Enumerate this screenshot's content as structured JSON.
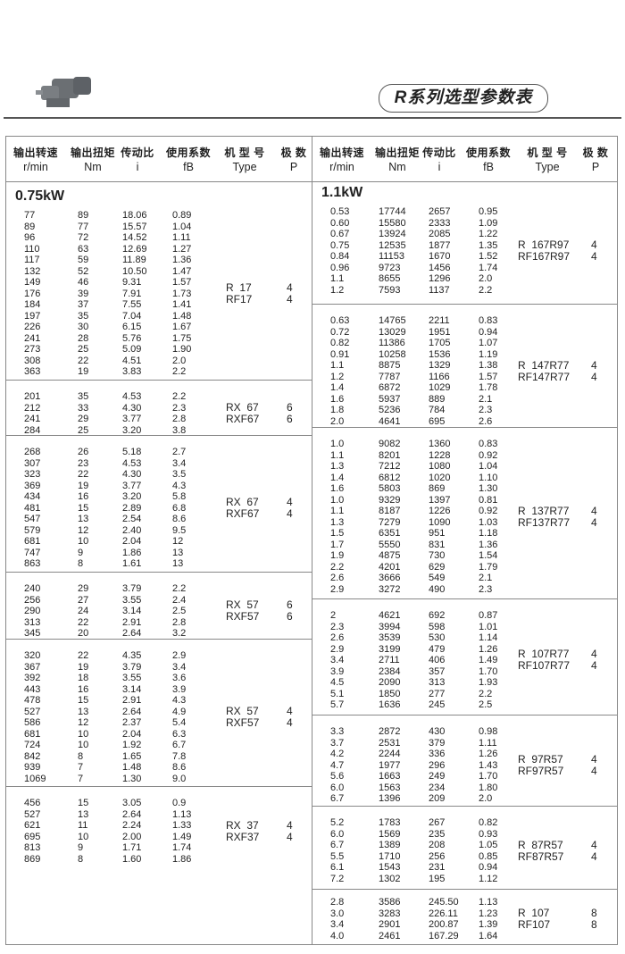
{
  "page": {
    "title": "R系列选型参数表",
    "product_image": "gear-motor-photo"
  },
  "columns": [
    {
      "zh": "输出转速",
      "en": "r/min"
    },
    {
      "zh": "输出扭矩",
      "en": "Nm"
    },
    {
      "zh": "传动比",
      "en": "i"
    },
    {
      "zh": "使用系数",
      "en": "fB"
    },
    {
      "zh": "机 型 号",
      "en": "Type"
    },
    {
      "zh": "极 数",
      "en": "P"
    }
  ],
  "left": {
    "power": "0.75kW",
    "sections": [
      {
        "type": [
          "R  17",
          "RF17"
        ],
        "poles": [
          "4",
          "4"
        ],
        "rows": [
          [
            "77",
            "89",
            "18.06",
            "0.89"
          ],
          [
            "89",
            "77",
            "15.57",
            "1.04"
          ],
          [
            "96",
            "72",
            "14.52",
            "1.11"
          ],
          [
            "110",
            "63",
            "12.69",
            "1.27"
          ],
          [
            "117",
            "59",
            "11.89",
            "1.36"
          ],
          [
            "132",
            "52",
            "10.50",
            "1.47"
          ],
          [
            "149",
            "46",
            "9.31",
            "1.57"
          ],
          [
            "176",
            "39",
            "7.91",
            "1.73"
          ],
          [
            "184",
            "37",
            "7.55",
            "1.41"
          ],
          [
            "197",
            "35",
            "7.04",
            "1.48"
          ],
          [
            "226",
            "30",
            "6.15",
            "1.67"
          ],
          [
            "241",
            "28",
            "5.76",
            "1.75"
          ],
          [
            "273",
            "25",
            "5.09",
            "1.90"
          ],
          [
            "308",
            "22",
            "4.51",
            "2.0"
          ],
          [
            "363",
            "19",
            "3.83",
            "2.2"
          ]
        ]
      },
      {
        "type": [
          "RX  67",
          "RXF67"
        ],
        "poles": [
          "6",
          "6"
        ],
        "rows": [
          [
            "201",
            "35",
            "4.53",
            "2.2"
          ],
          [
            "212",
            "33",
            "4.30",
            "2.3"
          ],
          [
            "241",
            "29",
            "3.77",
            "2.8"
          ],
          [
            "284",
            "25",
            "3.20",
            "3.8"
          ]
        ]
      },
      {
        "type": [
          "RX  67",
          "RXF67"
        ],
        "poles": [
          "4",
          "4"
        ],
        "rows": [
          [
            "268",
            "26",
            "5.18",
            "2.7"
          ],
          [
            "307",
            "23",
            "4.53",
            "3.4"
          ],
          [
            "323",
            "22",
            "4.30",
            "3.5"
          ],
          [
            "369",
            "19",
            "3.77",
            "4.3"
          ],
          [
            "434",
            "16",
            "3.20",
            "5.8"
          ],
          [
            "481",
            "15",
            "2.89",
            "6.8"
          ],
          [
            "547",
            "13",
            "2.54",
            "8.6"
          ],
          [
            "579",
            "12",
            "2.40",
            "9.5"
          ],
          [
            "681",
            "10",
            "2.04",
            "12"
          ],
          [
            "747",
            "9",
            "1.86",
            "13"
          ],
          [
            "863",
            "8",
            "1.61",
            "13"
          ]
        ]
      },
      {
        "type": [
          "RX  57",
          "RXF57"
        ],
        "poles": [
          "6",
          "6"
        ],
        "rows": [
          [
            "240",
            "29",
            "3.79",
            "2.2"
          ],
          [
            "256",
            "27",
            "3.55",
            "2.4"
          ],
          [
            "290",
            "24",
            "3.14",
            "2.5"
          ],
          [
            "313",
            "22",
            "2.91",
            "2.8"
          ],
          [
            "345",
            "20",
            "2.64",
            "3.2"
          ]
        ]
      },
      {
        "type": [
          "RX  57",
          "RXF57"
        ],
        "poles": [
          "4",
          "4"
        ],
        "rows": [
          [
            "320",
            "22",
            "4.35",
            "2.9"
          ],
          [
            "367",
            "19",
            "3.79",
            "3.4"
          ],
          [
            "392",
            "18",
            "3.55",
            "3.6"
          ],
          [
            "443",
            "16",
            "3.14",
            "3.9"
          ],
          [
            "478",
            "15",
            "2.91",
            "4.3"
          ],
          [
            "527",
            "13",
            "2.64",
            "4.9"
          ],
          [
            "586",
            "12",
            "2.37",
            "5.4"
          ],
          [
            "681",
            "10",
            "2.04",
            "6.3"
          ],
          [
            "724",
            "10",
            "1.92",
            "6.7"
          ],
          [
            "842",
            "8",
            "1.65",
            "7.8"
          ],
          [
            "939",
            "7",
            "1.48",
            "8.6"
          ],
          [
            "1069",
            "7",
            "1.30",
            "9.0"
          ]
        ]
      },
      {
        "type": [
          "RX  37",
          "RXF37"
        ],
        "poles": [
          "4",
          "4"
        ],
        "rows": [
          [
            "456",
            "15",
            "3.05",
            "0.9"
          ],
          [
            "527",
            "13",
            "2.64",
            "1.13"
          ],
          [
            "621",
            "11",
            "2.24",
            "1.33"
          ],
          [
            "695",
            "10",
            "2.00",
            "1.49"
          ],
          [
            "813",
            "9",
            "1.71",
            "1.74"
          ],
          [
            "869",
            "8",
            "1.60",
            "1.86"
          ]
        ]
      }
    ]
  },
  "right": {
    "power": "1.1kW",
    "sections": [
      {
        "type": [
          "R  167R97",
          "RF167R97"
        ],
        "poles": [
          "4",
          "4"
        ],
        "rows": [
          [
            "0.53",
            "17744",
            "2657",
            "0.95"
          ],
          [
            "0.60",
            "15580",
            "2333",
            "1.09"
          ],
          [
            "0.67",
            "13924",
            "2085",
            "1.22"
          ],
          [
            "0.75",
            "12535",
            "1877",
            "1.35"
          ],
          [
            "0.84",
            "11153",
            "1670",
            "1.52"
          ],
          [
            "0.96",
            "9723",
            "1456",
            "1.74"
          ],
          [
            "1.1",
            "8655",
            "1296",
            "2.0"
          ],
          [
            "1.2",
            "7593",
            "1137",
            "2.2"
          ]
        ]
      },
      {
        "type": [
          "R  147R77",
          "RF147R77"
        ],
        "poles": [
          "4",
          "4"
        ],
        "rows": [
          [
            "0.63",
            "14765",
            "2211",
            "0.83"
          ],
          [
            "0.72",
            "13029",
            "1951",
            "0.94"
          ],
          [
            "0.82",
            "11386",
            "1705",
            "1.07"
          ],
          [
            "0.91",
            "10258",
            "1536",
            "1.19"
          ],
          [
            "1.1",
            "8875",
            "1329",
            "1.38"
          ],
          [
            "1.2",
            "7787",
            "1166",
            "1.57"
          ],
          [
            "1.4",
            "6872",
            "1029",
            "1.78"
          ],
          [
            "1.6",
            "5937",
            "889",
            "2.1"
          ],
          [
            "1.8",
            "5236",
            "784",
            "2.3"
          ],
          [
            "2.0",
            "4641",
            "695",
            "2.6"
          ]
        ]
      },
      {
        "type": [
          "R  137R77",
          "RF137R77"
        ],
        "poles": [
          "4",
          "4"
        ],
        "rows": [
          [
            "1.0",
            "9082",
            "1360",
            "0.83"
          ],
          [
            "1.1",
            "8201",
            "1228",
            "0.92"
          ],
          [
            "1.3",
            "7212",
            "1080",
            "1.04"
          ],
          [
            "1.4",
            "6812",
            "1020",
            "1.10"
          ],
          [
            "1.6",
            "5803",
            "869",
            "1.30"
          ],
          [
            "1.0",
            "9329",
            "1397",
            "0.81"
          ],
          [
            "1.1",
            "8187",
            "1226",
            "0.92"
          ],
          [
            "1.3",
            "7279",
            "1090",
            "1.03"
          ],
          [
            "1.5",
            "6351",
            "951",
            "1.18"
          ],
          [
            "1.7",
            "5550",
            "831",
            "1.36"
          ],
          [
            "1.9",
            "4875",
            "730",
            "1.54"
          ],
          [
            "2.2",
            "4201",
            "629",
            "1.79"
          ],
          [
            "2.6",
            "3666",
            "549",
            "2.1"
          ],
          [
            "2.9",
            "3272",
            "490",
            "2.3"
          ]
        ]
      },
      {
        "type": [
          "R  107R77",
          "RF107R77"
        ],
        "poles": [
          "4",
          "4"
        ],
        "rows": [
          [
            "2",
            "4621",
            "692",
            "0.87"
          ],
          [
            "2.3",
            "3994",
            "598",
            "1.01"
          ],
          [
            "2.6",
            "3539",
            "530",
            "1.14"
          ],
          [
            "2.9",
            "3199",
            "479",
            "1.26"
          ],
          [
            "3.4",
            "2711",
            "406",
            "1.49"
          ],
          [
            "3.9",
            "2384",
            "357",
            "1.70"
          ],
          [
            "4.5",
            "2090",
            "313",
            "1.93"
          ],
          [
            "5.1",
            "1850",
            "277",
            "2.2"
          ],
          [
            "5.7",
            "1636",
            "245",
            "2.5"
          ]
        ]
      },
      {
        "type": [
          "R  97R57",
          "RF97R57"
        ],
        "poles": [
          "4",
          "4"
        ],
        "rows": [
          [
            "3.3",
            "2872",
            "430",
            "0.98"
          ],
          [
            "3.7",
            "2531",
            "379",
            "1.11"
          ],
          [
            "4.2",
            "2244",
            "336",
            "1.26"
          ],
          [
            "4.7",
            "1977",
            "296",
            "1.43"
          ],
          [
            "5.6",
            "1663",
            "249",
            "1.70"
          ],
          [
            "6.0",
            "1563",
            "234",
            "1.80"
          ],
          [
            "6.7",
            "1396",
            "209",
            "2.0"
          ]
        ]
      },
      {
        "type": [
          "R  87R57",
          "RF87R57"
        ],
        "poles": [
          "4",
          "4"
        ],
        "rows": [
          [
            "5.2",
            "1783",
            "267",
            "0.82"
          ],
          [
            "6.0",
            "1569",
            "235",
            "0.93"
          ],
          [
            "6.7",
            "1389",
            "208",
            "1.05"
          ],
          [
            "5.5",
            "1710",
            "256",
            "0.85"
          ],
          [
            "6.1",
            "1543",
            "231",
            "0.94"
          ],
          [
            "7.2",
            "1302",
            "195",
            "1.12"
          ]
        ]
      },
      {
        "type": [
          "R  107",
          "RF107"
        ],
        "poles": [
          "8",
          "8"
        ],
        "rows": [
          [
            "2.8",
            "3586",
            "245.50",
            "1.13"
          ],
          [
            "3.0",
            "3283",
            "226.11",
            "1.23"
          ],
          [
            "3.4",
            "2901",
            "200.87",
            "1.39"
          ],
          [
            "4.0",
            "2461",
            "167.29",
            "1.64"
          ]
        ]
      }
    ]
  }
}
